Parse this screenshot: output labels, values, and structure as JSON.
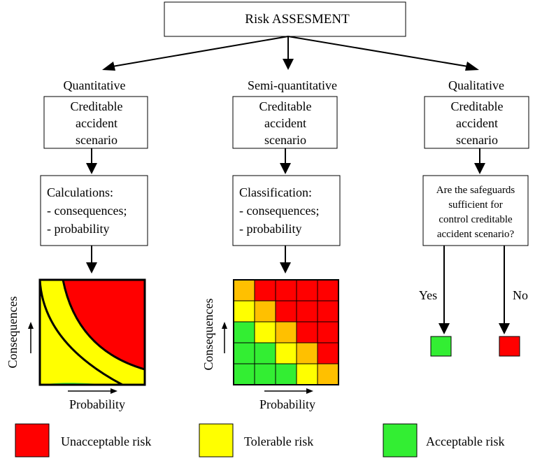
{
  "title": "Risk ASSESMENT",
  "colors": {
    "red": "#ff0000",
    "yellow": "#ffff00",
    "green": "#33ee33",
    "orange": "#ffc000"
  },
  "columns": {
    "quantitative": {
      "label": "Quantitative",
      "scenario": [
        "Creditable",
        "accident",
        "scenario"
      ],
      "step": [
        "Calculations:",
        "-  consequences;",
        "-  probability"
      ]
    },
    "semi": {
      "label": "Semi-quantitative",
      "scenario": [
        "Creditable",
        "accident",
        "scenario"
      ],
      "step": [
        "Classification:",
        "-  consequences;",
        "-  probability"
      ]
    },
    "qualitative": {
      "label": "Qualitative",
      "scenario": [
        "Creditable",
        "accident",
        "scenario"
      ],
      "question": [
        "Are the safeguards",
        "sufficient for",
        "control creditable",
        "accident scenario?"
      ],
      "yes": "Yes",
      "no": "No"
    }
  },
  "axes": {
    "y": "Consequences",
    "x": "Probability"
  },
  "matrix": [
    [
      "orange",
      "red",
      "red",
      "red",
      "red"
    ],
    [
      "yellow",
      "orange",
      "red",
      "red",
      "red"
    ],
    [
      "green",
      "yellow",
      "orange",
      "red",
      "red"
    ],
    [
      "green",
      "green",
      "yellow",
      "orange",
      "red"
    ],
    [
      "green",
      "green",
      "green",
      "yellow",
      "orange"
    ]
  ],
  "legend": [
    {
      "label": "Unacceptable risk",
      "color": "red"
    },
    {
      "label": "Tolerable risk",
      "color": "yellow"
    },
    {
      "label": "Acceptable risk",
      "color": "green"
    }
  ]
}
